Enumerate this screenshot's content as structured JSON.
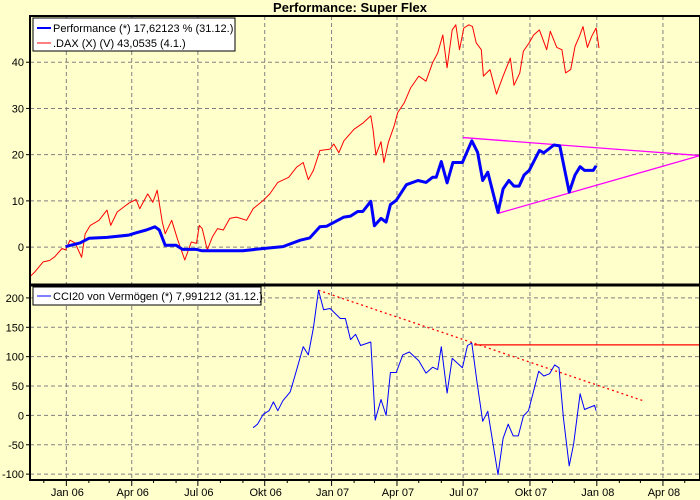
{
  "colors": {
    "background": "#FFFFCC",
    "performance": "#0000FF",
    "dax": "#FF0000",
    "cci": "#0000FF",
    "triangle": "#FF00FF",
    "cci_trend": "#FF0000",
    "grid": "#808080"
  },
  "chart_data": [
    {
      "type": "line",
      "title": "Performance: Super Flex",
      "x_range": [
        "2005-11-12",
        "2008-05-22"
      ],
      "ylim": [
        -8.2,
        50
      ],
      "y_ticks": [
        0,
        10,
        20,
        30,
        40
      ],
      "x_tick_labels": [
        [
          "2006-01-01",
          "Jan 06"
        ],
        [
          "2006-04-01",
          "Apr 06"
        ],
        [
          "2006-07-01",
          "Jul 06"
        ],
        [
          "2006-10-01",
          "Okt 06"
        ],
        [
          "2007-01-01",
          "Jan 07"
        ],
        [
          "2007-04-01",
          "Apr 07"
        ],
        [
          "2007-07-01",
          "Jul 07"
        ],
        [
          "2007-10-01",
          "Okt 07"
        ],
        [
          "2008-01-01",
          "Jan 08"
        ],
        [
          "2008-04-01",
          "Apr 08"
        ]
      ],
      "grid": true,
      "legend_position": "top-left",
      "series": [
        {
          "name": "Performance (*) 17,62123 % (31.12.)",
          "color": "#0000FF",
          "points": [
            [
              "2005-12-31",
              0.1
            ],
            [
              "2006-01-20",
              0.9
            ],
            [
              "2006-02-01",
              1.9
            ],
            [
              "2006-02-26",
              2.1
            ],
            [
              "2006-03-28",
              2.6
            ],
            [
              "2006-04-07",
              3.1
            ],
            [
              "2006-04-21",
              3.7
            ],
            [
              "2006-05-03",
              4.4
            ],
            [
              "2006-05-09",
              3.7
            ],
            [
              "2006-05-17",
              0.4
            ],
            [
              "2006-06-01",
              0.4
            ],
            [
              "2006-06-10",
              -0.5
            ],
            [
              "2006-06-29",
              -0.5
            ],
            [
              "2006-07-07",
              -0.8
            ],
            [
              "2006-09-01",
              -0.8
            ],
            [
              "2006-09-29",
              -0.3
            ],
            [
              "2006-10-26",
              0.1
            ],
            [
              "2006-11-19",
              1.5
            ],
            [
              "2006-12-02",
              2.0
            ],
            [
              "2006-12-16",
              4.4
            ],
            [
              "2006-12-25",
              4.5
            ],
            [
              "2007-01-18",
              6.5
            ],
            [
              "2007-01-27",
              6.7
            ],
            [
              "2007-02-06",
              7.7
            ],
            [
              "2007-02-13",
              7.7
            ],
            [
              "2007-02-24",
              9.9
            ],
            [
              "2007-03-01",
              4.6
            ],
            [
              "2007-03-10",
              6.2
            ],
            [
              "2007-03-17",
              5.4
            ],
            [
              "2007-03-23",
              9.2
            ],
            [
              "2007-03-31",
              10.1
            ],
            [
              "2007-04-14",
              13.5
            ],
            [
              "2007-04-30",
              14.4
            ],
            [
              "2007-05-11",
              14.0
            ],
            [
              "2007-05-20",
              15.1
            ],
            [
              "2007-05-25",
              15.1
            ],
            [
              "2007-06-01",
              18.5
            ],
            [
              "2007-06-09",
              13.9
            ],
            [
              "2007-06-17",
              18.3
            ],
            [
              "2007-06-30",
              18.3
            ],
            [
              "2007-07-13",
              23.0
            ],
            [
              "2007-07-21",
              20.5
            ],
            [
              "2007-07-28",
              14.4
            ],
            [
              "2007-08-04",
              16.2
            ],
            [
              "2007-08-18",
              7.5
            ],
            [
              "2007-08-25",
              12.6
            ],
            [
              "2007-09-02",
              14.4
            ],
            [
              "2007-09-09",
              13.2
            ],
            [
              "2007-09-16",
              13.2
            ],
            [
              "2007-09-23",
              15.6
            ],
            [
              "2007-09-30",
              16.6
            ],
            [
              "2007-10-14",
              20.9
            ],
            [
              "2007-10-20",
              20.4
            ],
            [
              "2007-11-03",
              22.1
            ],
            [
              "2007-11-11",
              21.9
            ],
            [
              "2007-11-24",
              11.9
            ],
            [
              "2007-12-02",
              15.6
            ],
            [
              "2007-12-09",
              17.4
            ],
            [
              "2007-12-15",
              16.6
            ],
            [
              "2007-12-27",
              16.6
            ],
            [
              "2007-12-31",
              17.6
            ]
          ]
        },
        {
          "name": ".DAX (X) (V) 43,0535 (4.1.)",
          "color": "#FF0000",
          "points": [
            [
              "2005-11-12",
              -6.4
            ],
            [
              "2005-11-19",
              -5.3
            ],
            [
              "2005-11-30",
              -3.2
            ],
            [
              "2005-12-09",
              -2.9
            ],
            [
              "2005-12-16",
              -2.1
            ],
            [
              "2005-12-26",
              -0.3
            ],
            [
              "2005-12-31",
              -0.6
            ],
            [
              "2006-01-06",
              1.5
            ],
            [
              "2006-01-13",
              0.9
            ],
            [
              "2006-01-22",
              -2.2
            ],
            [
              "2006-01-27",
              2.9
            ],
            [
              "2006-02-03",
              4.7
            ],
            [
              "2006-02-15",
              5.8
            ],
            [
              "2006-02-26",
              8.0
            ],
            [
              "2006-03-03",
              4.7
            ],
            [
              "2006-03-12",
              7.6
            ],
            [
              "2006-03-28",
              9.5
            ],
            [
              "2006-04-07",
              10.3
            ],
            [
              "2006-04-12",
              8.3
            ],
            [
              "2006-04-23",
              11.5
            ],
            [
              "2006-04-30",
              9.7
            ],
            [
              "2006-05-06",
              12.3
            ],
            [
              "2006-05-13",
              5.4
            ],
            [
              "2006-05-17",
              2.9
            ],
            [
              "2006-05-26",
              5.8
            ],
            [
              "2006-06-03",
              1.7
            ],
            [
              "2006-06-13",
              -2.8
            ],
            [
              "2006-06-22",
              1.1
            ],
            [
              "2006-06-29",
              0.8
            ],
            [
              "2006-07-03",
              4.7
            ],
            [
              "2006-07-07",
              4.0
            ],
            [
              "2006-07-14",
              -0.6
            ],
            [
              "2006-07-21",
              2.2
            ],
            [
              "2006-07-28",
              4.0
            ],
            [
              "2006-08-05",
              3.7
            ],
            [
              "2006-08-14",
              6.2
            ],
            [
              "2006-08-23",
              6.5
            ],
            [
              "2006-09-06",
              5.8
            ],
            [
              "2006-09-15",
              8.3
            ],
            [
              "2006-09-29",
              10.1
            ],
            [
              "2006-10-08",
              11.5
            ],
            [
              "2006-10-19",
              14.0
            ],
            [
              "2006-11-03",
              15.1
            ],
            [
              "2006-11-14",
              17.3
            ],
            [
              "2006-11-23",
              18.3
            ],
            [
              "2006-11-30",
              14.6
            ],
            [
              "2006-12-07",
              16.6
            ],
            [
              "2006-12-16",
              20.9
            ],
            [
              "2006-12-30",
              21.2
            ],
            [
              "2007-01-04",
              22.3
            ],
            [
              "2007-01-11",
              20.4
            ],
            [
              "2007-01-18",
              23.0
            ],
            [
              "2007-02-01",
              25.5
            ],
            [
              "2007-02-13",
              26.8
            ],
            [
              "2007-02-24",
              28.4
            ],
            [
              "2007-02-27",
              25.5
            ],
            [
              "2007-03-03",
              19.9
            ],
            [
              "2007-03-10",
              22.8
            ],
            [
              "2007-03-14",
              18.3
            ],
            [
              "2007-03-20",
              22.6
            ],
            [
              "2007-03-28",
              26.2
            ],
            [
              "2007-04-02",
              29.1
            ],
            [
              "2007-04-11",
              31.2
            ],
            [
              "2007-04-20",
              34.5
            ],
            [
              "2007-05-01",
              37.0
            ],
            [
              "2007-05-11",
              35.9
            ],
            [
              "2007-05-20",
              39.9
            ],
            [
              "2007-05-27",
              42.0
            ],
            [
              "2007-06-03",
              45.9
            ],
            [
              "2007-06-09",
              38.8
            ],
            [
              "2007-06-16",
              47.0
            ],
            [
              "2007-06-21",
              48.1
            ],
            [
              "2007-06-26",
              42.7
            ],
            [
              "2007-07-02",
              47.4
            ],
            [
              "2007-07-09",
              48.1
            ],
            [
              "2007-07-14",
              47.7
            ],
            [
              "2007-07-19",
              44.2
            ],
            [
              "2007-07-26",
              42.7
            ],
            [
              "2007-07-29",
              37.0
            ],
            [
              "2007-08-07",
              38.4
            ],
            [
              "2007-08-16",
              33.1
            ],
            [
              "2007-08-25",
              37.0
            ],
            [
              "2007-09-04",
              40.9
            ],
            [
              "2007-09-09",
              35.0
            ],
            [
              "2007-09-17",
              37.7
            ],
            [
              "2007-09-22",
              42.4
            ],
            [
              "2007-09-30",
              44.2
            ],
            [
              "2007-10-06",
              45.9
            ],
            [
              "2007-10-14",
              47.0
            ],
            [
              "2007-10-24",
              42.7
            ],
            [
              "2007-10-29",
              46.7
            ],
            [
              "2007-11-07",
              43.2
            ],
            [
              "2007-11-14",
              42.7
            ],
            [
              "2007-11-19",
              37.7
            ],
            [
              "2007-11-26",
              38.4
            ],
            [
              "2007-12-02",
              43.4
            ],
            [
              "2007-12-08",
              45.6
            ],
            [
              "2007-12-13",
              47.7
            ],
            [
              "2007-12-19",
              43.2
            ],
            [
              "2007-12-25",
              45.6
            ],
            [
              "2007-12-31",
              47.4
            ],
            [
              "2008-01-04",
              43.05
            ]
          ]
        }
      ],
      "trend_lines": [
        {
          "color": "#FF00FF",
          "style": "solid",
          "points": [
            [
              "2007-07-01",
              23.7
            ],
            [
              "2008-05-22",
              19.8
            ]
          ]
        },
        {
          "color": "#FF00FF",
          "style": "solid",
          "points": [
            [
              "2007-08-18",
              7.3
            ],
            [
              "2008-05-22",
              19.8
            ]
          ]
        }
      ]
    },
    {
      "type": "line",
      "x_range": [
        "2005-11-12",
        "2008-05-22"
      ],
      "ylim": [
        -110,
        222
      ],
      "y_ticks": [
        200,
        150,
        100,
        50,
        0,
        -50,
        -100
      ],
      "grid": true,
      "legend_position": "top-left",
      "series": [
        {
          "name": "CCI20 von Vermögen (*) 7,991212 (31.12.)",
          "color": "#0000FF",
          "points": [
            [
              "2006-09-15",
              -21
            ],
            [
              "2006-09-21",
              -15
            ],
            [
              "2006-09-29",
              2
            ],
            [
              "2006-10-07",
              8
            ],
            [
              "2006-10-13",
              23
            ],
            [
              "2006-10-19",
              8
            ],
            [
              "2006-10-26",
              25
            ],
            [
              "2006-11-05",
              40
            ],
            [
              "2006-11-12",
              69
            ],
            [
              "2006-11-23",
              117
            ],
            [
              "2006-11-30",
              103
            ],
            [
              "2006-12-07",
              149
            ],
            [
              "2006-12-14",
              213
            ],
            [
              "2006-12-21",
              180
            ],
            [
              "2006-12-30",
              182
            ],
            [
              "2007-01-13",
              165
            ],
            [
              "2007-01-20",
              165
            ],
            [
              "2007-01-27",
              129
            ],
            [
              "2007-02-03",
              138
            ],
            [
              "2007-02-10",
              119
            ],
            [
              "2007-02-24",
              125
            ],
            [
              "2007-03-02",
              -8
            ],
            [
              "2007-03-10",
              27
            ],
            [
              "2007-03-17",
              0
            ],
            [
              "2007-03-23",
              73
            ],
            [
              "2007-03-31",
              73
            ],
            [
              "2007-04-09",
              103
            ],
            [
              "2007-04-18",
              108
            ],
            [
              "2007-05-01",
              93
            ],
            [
              "2007-05-11",
              72
            ],
            [
              "2007-05-20",
              82
            ],
            [
              "2007-05-27",
              78
            ],
            [
              "2007-06-01",
              117
            ],
            [
              "2007-06-09",
              38
            ],
            [
              "2007-06-16",
              97
            ],
            [
              "2007-06-30",
              81
            ],
            [
              "2007-07-07",
              119
            ],
            [
              "2007-07-13",
              123
            ],
            [
              "2007-07-20",
              58
            ],
            [
              "2007-07-28",
              -10
            ],
            [
              "2007-08-04",
              7
            ],
            [
              "2007-08-18",
              -101
            ],
            [
              "2007-08-25",
              -39
            ],
            [
              "2007-09-01",
              -15
            ],
            [
              "2007-09-08",
              -35
            ],
            [
              "2007-09-15",
              -35
            ],
            [
              "2007-09-22",
              -1
            ],
            [
              "2007-09-29",
              8
            ],
            [
              "2007-10-13",
              75
            ],
            [
              "2007-10-20",
              67
            ],
            [
              "2007-10-28",
              71
            ],
            [
              "2007-11-04",
              86
            ],
            [
              "2007-11-10",
              81
            ],
            [
              "2007-11-16",
              -4
            ],
            [
              "2007-11-24",
              -86
            ],
            [
              "2007-11-30",
              -49
            ],
            [
              "2007-12-09",
              37
            ],
            [
              "2007-12-15",
              10
            ],
            [
              "2007-12-29",
              17
            ],
            [
              "2007-12-31",
              8
            ]
          ]
        }
      ],
      "trend_lines": [
        {
          "color": "#FF0000",
          "style": "dotted",
          "points": [
            [
              "2006-12-14",
              213
            ],
            [
              "2008-03-07",
              24
            ]
          ]
        },
        {
          "color": "#FF0000",
          "style": "solid",
          "points": [
            [
              "2007-07-16",
              120
            ],
            [
              "2008-05-22",
              120
            ]
          ]
        }
      ]
    }
  ]
}
